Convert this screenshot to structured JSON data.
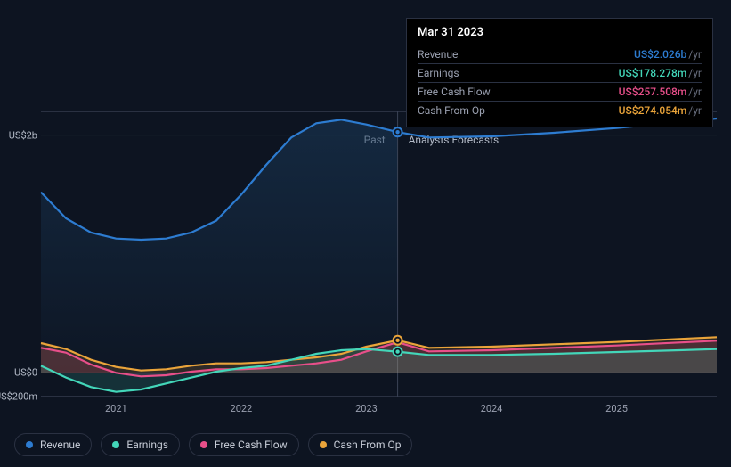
{
  "colors": {
    "background": "#0d1421",
    "grid": "#2a3142",
    "text": "#9aa0b0",
    "revenue": "#2d7cd1",
    "earnings": "#43d6b9",
    "fcf": "#e84f8a",
    "cashop": "#eaa43a"
  },
  "tooltip": {
    "date": "Mar 31 2023",
    "rows": [
      {
        "label": "Revenue",
        "value": "US$2.026b",
        "suffix": "/yr",
        "colorKey": "revenue"
      },
      {
        "label": "Earnings",
        "value": "US$178.278m",
        "suffix": "/yr",
        "colorKey": "earnings"
      },
      {
        "label": "Free Cash Flow",
        "value": "US$257.508m",
        "suffix": "/yr",
        "colorKey": "fcf"
      },
      {
        "label": "Cash From Op",
        "value": "US$274.054m",
        "suffix": "/yr",
        "colorKey": "cashop"
      }
    ]
  },
  "axes": {
    "yTicks": [
      {
        "label": "US$2b",
        "value": 2000
      },
      {
        "label": "US$0",
        "value": 0
      },
      {
        "label": "-US$200m",
        "value": -200
      }
    ],
    "xTicks": [
      "2021",
      "2022",
      "2023",
      "2024",
      "2025"
    ],
    "ylim": [
      -200,
      2200
    ],
    "xlim": [
      2020.4,
      2025.8
    ]
  },
  "zones": {
    "past": "Past",
    "forecast": "Analysts Forecasts",
    "splitX": 2023.25
  },
  "plot": {
    "widthPx": 759,
    "heightPx": 320
  },
  "series": {
    "revenue": {
      "label": "Revenue",
      "colorKey": "revenue",
      "points": [
        [
          2020.4,
          1520
        ],
        [
          2020.6,
          1300
        ],
        [
          2020.8,
          1180
        ],
        [
          2021.0,
          1130
        ],
        [
          2021.2,
          1120
        ],
        [
          2021.4,
          1130
        ],
        [
          2021.6,
          1180
        ],
        [
          2021.8,
          1280
        ],
        [
          2022.0,
          1500
        ],
        [
          2022.2,
          1750
        ],
        [
          2022.4,
          1980
        ],
        [
          2022.6,
          2100
        ],
        [
          2022.8,
          2130
        ],
        [
          2023.0,
          2090
        ],
        [
          2023.25,
          2026
        ],
        [
          2023.5,
          1980
        ],
        [
          2024.0,
          1990
        ],
        [
          2024.5,
          2020
        ],
        [
          2025.0,
          2060
        ],
        [
          2025.5,
          2110
        ],
        [
          2025.8,
          2140
        ]
      ]
    },
    "earnings": {
      "label": "Earnings",
      "colorKey": "earnings",
      "points": [
        [
          2020.4,
          60
        ],
        [
          2020.6,
          -40
        ],
        [
          2020.8,
          -120
        ],
        [
          2021.0,
          -160
        ],
        [
          2021.2,
          -140
        ],
        [
          2021.4,
          -90
        ],
        [
          2021.6,
          -40
        ],
        [
          2021.8,
          10
        ],
        [
          2022.0,
          40
        ],
        [
          2022.2,
          60
        ],
        [
          2022.4,
          110
        ],
        [
          2022.6,
          160
        ],
        [
          2022.8,
          190
        ],
        [
          2023.0,
          200
        ],
        [
          2023.25,
          178
        ],
        [
          2023.5,
          150
        ],
        [
          2024.0,
          150
        ],
        [
          2024.5,
          160
        ],
        [
          2025.0,
          175
        ],
        [
          2025.5,
          190
        ],
        [
          2025.8,
          200
        ]
      ]
    },
    "fcf": {
      "label": "Free Cash Flow",
      "colorKey": "fcf",
      "points": [
        [
          2020.4,
          210
        ],
        [
          2020.6,
          170
        ],
        [
          2020.8,
          70
        ],
        [
          2021.0,
          0
        ],
        [
          2021.2,
          -30
        ],
        [
          2021.4,
          -20
        ],
        [
          2021.6,
          10
        ],
        [
          2021.8,
          30
        ],
        [
          2022.0,
          30
        ],
        [
          2022.2,
          40
        ],
        [
          2022.4,
          60
        ],
        [
          2022.6,
          80
        ],
        [
          2022.8,
          110
        ],
        [
          2023.0,
          180
        ],
        [
          2023.25,
          257
        ],
        [
          2023.5,
          180
        ],
        [
          2024.0,
          190
        ],
        [
          2024.5,
          210
        ],
        [
          2025.0,
          230
        ],
        [
          2025.5,
          255
        ],
        [
          2025.8,
          270
        ]
      ]
    },
    "cashop": {
      "label": "Cash From Op",
      "colorKey": "cashop",
      "points": [
        [
          2020.4,
          250
        ],
        [
          2020.6,
          200
        ],
        [
          2020.8,
          110
        ],
        [
          2021.0,
          50
        ],
        [
          2021.2,
          20
        ],
        [
          2021.4,
          30
        ],
        [
          2021.6,
          60
        ],
        [
          2021.8,
          80
        ],
        [
          2022.0,
          80
        ],
        [
          2022.2,
          90
        ],
        [
          2022.4,
          110
        ],
        [
          2022.6,
          130
        ],
        [
          2022.8,
          160
        ],
        [
          2023.0,
          220
        ],
        [
          2023.25,
          274
        ],
        [
          2023.5,
          210
        ],
        [
          2024.0,
          220
        ],
        [
          2024.5,
          240
        ],
        [
          2025.0,
          260
        ],
        [
          2025.5,
          285
        ],
        [
          2025.8,
          300
        ]
      ]
    }
  },
  "legend": [
    {
      "key": "revenue",
      "label": "Revenue"
    },
    {
      "key": "earnings",
      "label": "Earnings"
    },
    {
      "key": "fcf",
      "label": "Free Cash Flow"
    },
    {
      "key": "cashop",
      "label": "Cash From Op"
    }
  ]
}
